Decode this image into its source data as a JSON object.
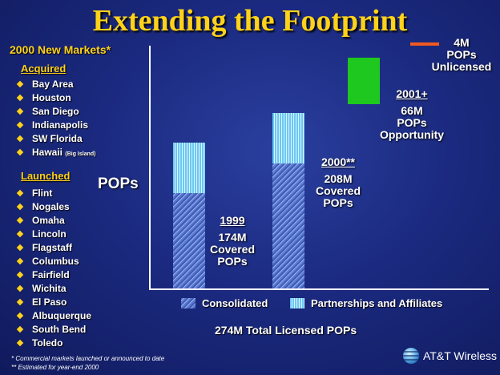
{
  "title": "Extending the Footprint",
  "new_markets": {
    "heading": "2000 New Markets*",
    "acquired_heading": "Acquired",
    "acquired": [
      "Bay Area",
      "Houston",
      "San Diego",
      "Indianapolis",
      "SW Florida",
      "Hawaii"
    ],
    "hawaii_note": "(Big Island)",
    "launched_heading": "Launched",
    "launched": [
      "Flint",
      "Nogales",
      "Omaha",
      "Lincoln",
      "Flagstaff",
      "Columbus",
      "Fairfield",
      "Wichita",
      "El Paso",
      "Albuquerque",
      "South Bend",
      "Toledo"
    ]
  },
  "chart": {
    "y_label": "POPs",
    "annot_1999_year": "1999",
    "annot_1999_value": "174M",
    "annot_1999_l2": "Covered",
    "annot_1999_l3": "POPs",
    "annot_2000_year": "2000**",
    "annot_2000_value": "208M",
    "annot_2000_l2": "Covered",
    "annot_2000_l3": "POPs",
    "annot_2001_year": "2001+",
    "annot_2001_value": "66M",
    "annot_2001_l2": "POPs",
    "annot_2001_l3": "Opportunity",
    "unlicensed_value": "4M",
    "unlicensed_l2": "POPs",
    "unlicensed_l3": "Unlicensed",
    "legend_consolidated": "Consolidated",
    "legend_partnerships": "Partnerships and Affiliates",
    "total": "274M Total Licensed POPs"
  },
  "footnotes": {
    "line1": "* Commercial markets launched or announced to date",
    "line2": "** Estimated for year-end 2000"
  },
  "brand": "AT&T Wireless",
  "colors": {
    "title": "#ffd21a",
    "consolidated": "#5a7ad0",
    "partnerships": "#8fd8f8",
    "opportunity": "#1ec81e",
    "unlicensed": "#f05a1e"
  }
}
